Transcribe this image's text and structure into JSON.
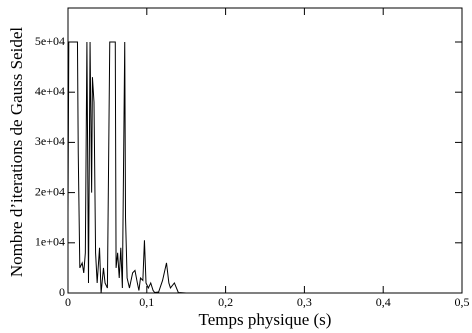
{
  "chart_data": {
    "type": "line",
    "x_label": "Temps physique (s)",
    "y_label": "Nombre d’iterations de Gauss Seidel",
    "x": [
      0,
      0.001,
      0.012,
      0.013,
      0.015,
      0.018,
      0.02,
      0.022,
      0.024,
      0.026,
      0.028,
      0.03,
      0.031,
      0.033,
      0.035,
      0.037,
      0.04,
      0.042,
      0.045,
      0.047,
      0.05,
      0.053,
      0.06,
      0.061,
      0.063,
      0.065,
      0.067,
      0.069,
      0.072,
      0.073,
      0.075,
      0.078,
      0.082,
      0.085,
      0.088,
      0.09,
      0.092,
      0.095,
      0.097,
      0.099,
      0.102,
      0.105,
      0.108,
      0.11,
      0.115,
      0.12,
      0.125,
      0.128,
      0.13,
      0.135,
      0.14,
      0.15,
      0.5
    ],
    "series": [
      {
        "name": "iterations",
        "color": "#000000",
        "values": [
          16000,
          50000,
          50000,
          28000,
          5000,
          6000,
          4000,
          8000,
          50000,
          2000,
          50000,
          20000,
          43000,
          38000,
          8000,
          2000,
          9000,
          0,
          5000,
          2000,
          1000,
          50000,
          50000,
          5000,
          8000,
          3000,
          9000,
          1000,
          50000,
          15000,
          3000,
          1000,
          4000,
          4500,
          2000,
          500,
          3000,
          2500,
          10500,
          2000,
          1000,
          2000,
          500,
          100,
          200,
          2500,
          6000,
          2000,
          1000,
          2000,
          100,
          0,
          0
        ]
      }
    ],
    "xlim": [
      0,
      0.5
    ],
    "ylim": [
      0,
      50000
    ],
    "xticks": [
      0,
      {
        "value": 0.1,
        "label": "0,1"
      },
      {
        "value": 0.2,
        "label": "0,2"
      },
      {
        "value": 0.3,
        "label": "0,3"
      },
      {
        "value": 0.4,
        "label": "0,4"
      },
      {
        "value": 0.5,
        "label": "0,5"
      }
    ],
    "yticks": [
      0,
      {
        "value": 10000,
        "label": "1e+04"
      },
      {
        "value": 20000,
        "label": "2e+04"
      },
      {
        "value": 30000,
        "label": "3e+04"
      },
      {
        "value": 40000,
        "label": "4e+04"
      },
      {
        "value": 50000,
        "label": "5e+04"
      }
    ]
  }
}
